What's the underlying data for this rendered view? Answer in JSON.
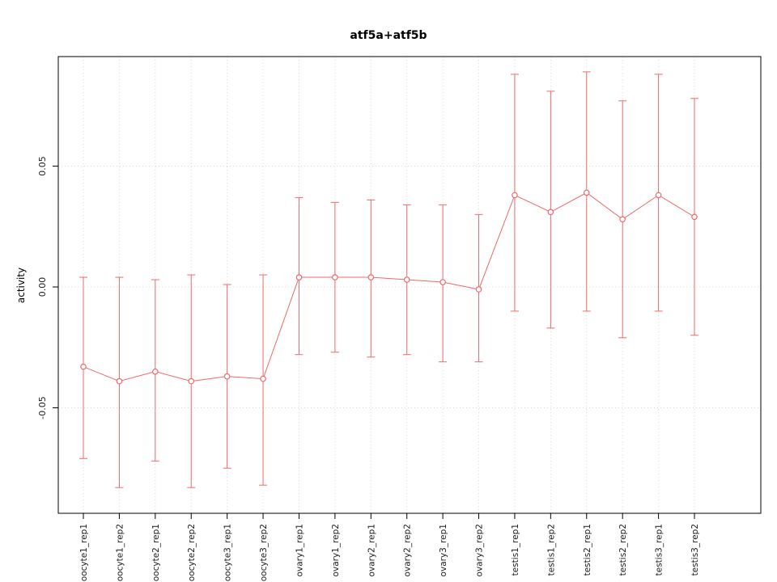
{
  "chart_data": {
    "type": "line",
    "title": "atf5a+atf5b",
    "xlabel": "",
    "ylabel": "activity",
    "categories": [
      "oocyte1_rep1",
      "oocyte1_rep2",
      "oocyte2_rep1",
      "oocyte2_rep2",
      "oocyte3_rep1",
      "oocyte3_rep2",
      "ovary1_rep1",
      "ovary1_rep2",
      "ovary2_rep1",
      "ovary2_rep2",
      "ovary3_rep1",
      "ovary3_rep2",
      "testis1_rep1",
      "testis1_rep2",
      "testis2_rep1",
      "testis2_rep2",
      "testis3_rep1",
      "testis3_rep2"
    ],
    "series": [
      {
        "name": "activity",
        "values": [
          -0.033,
          -0.039,
          -0.035,
          -0.039,
          -0.037,
          -0.038,
          0.004,
          0.004,
          0.004,
          0.003,
          0.002,
          -0.001,
          0.038,
          0.031,
          0.039,
          0.028,
          0.038,
          0.029
        ],
        "upper": [
          0.004,
          0.004,
          0.003,
          0.005,
          0.001,
          0.005,
          0.037,
          0.035,
          0.036,
          0.034,
          0.034,
          0.03,
          0.088,
          0.081,
          0.089,
          0.077,
          0.088,
          0.078
        ],
        "lower": [
          -0.071,
          -0.083,
          -0.072,
          -0.083,
          -0.075,
          -0.082,
          -0.028,
          -0.027,
          -0.029,
          -0.028,
          -0.031,
          -0.031,
          -0.01,
          -0.017,
          -0.01,
          -0.021,
          -0.01,
          -0.02
        ]
      }
    ],
    "yticks": [
      -0.05,
      0,
      0.05
    ],
    "ylim": [
      -0.095,
      0.095
    ],
    "grid": true,
    "legend": "none",
    "colors": {
      "series": "#ee6a6a",
      "grid": "#d9d9d9",
      "axis": "#000000",
      "text": "#1a1a1a"
    }
  }
}
